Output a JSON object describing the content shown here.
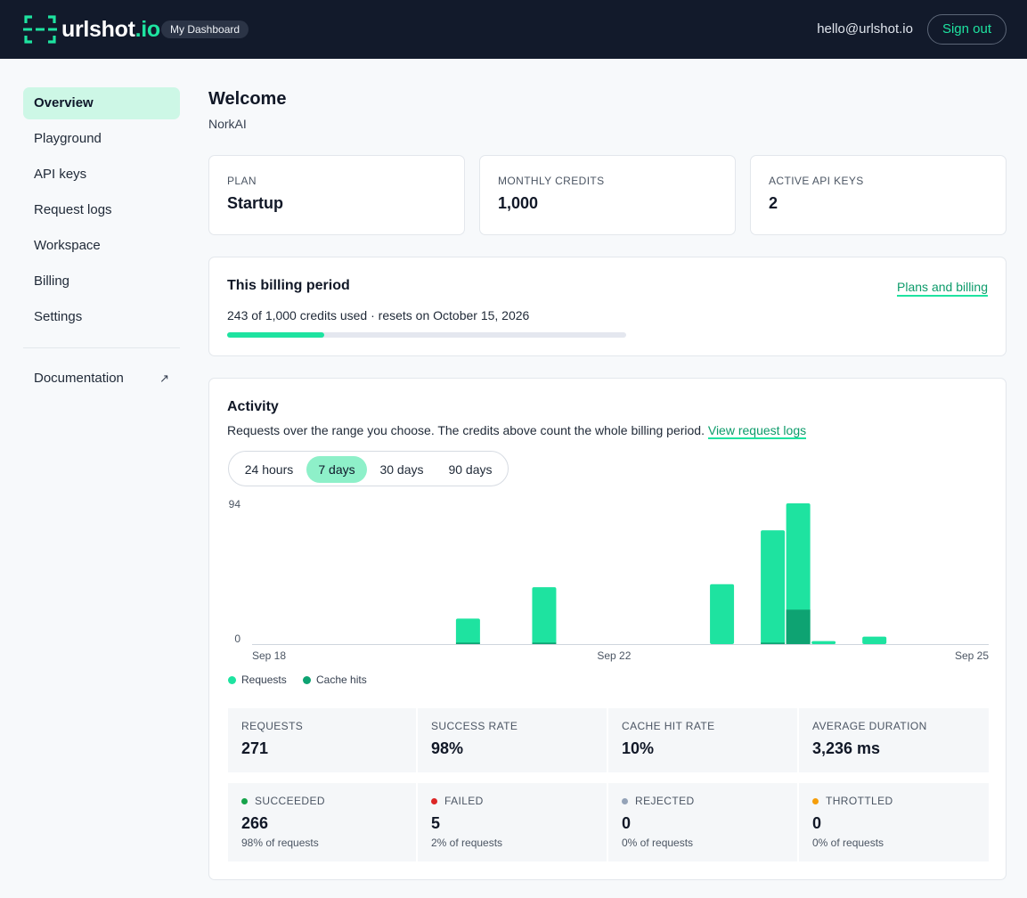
{
  "header": {
    "brand_name": "urlshot",
    "brand_tld": ".io",
    "badge": "My Dashboard",
    "user_email": "hello@urlshot.io",
    "sign_out": "Sign out",
    "brand_color": "#1ee3a0"
  },
  "sidebar": {
    "items": [
      {
        "label": "Overview",
        "active": true
      },
      {
        "label": "Playground"
      },
      {
        "label": "API keys"
      },
      {
        "label": "Request logs"
      },
      {
        "label": "Workspace"
      },
      {
        "label": "Billing"
      },
      {
        "label": "Settings"
      }
    ],
    "documentation": "Documentation",
    "documentation_icon": "external-arrow-icon"
  },
  "main": {
    "title": "Welcome",
    "org": "NorkAI",
    "stats": [
      {
        "label": "PLAN",
        "value": "Startup"
      },
      {
        "label": "MONTHLY CREDITS",
        "value": "1,000"
      },
      {
        "label": "ACTIVE API KEYS",
        "value": "2"
      }
    ],
    "billing": {
      "title": "This billing period",
      "link": "Plans and billing",
      "usage_text": "243 of 1,000 credits used · resets on October 15, 2026",
      "used": 243,
      "total": 1000
    },
    "activity": {
      "title": "Activity",
      "description": "Requests over the range you choose. The credits above count the whole billing period.",
      "link": "View request logs",
      "ranges": [
        "24 hours",
        "7 days",
        "30 days",
        "90 days"
      ],
      "selected_range": "7 days"
    },
    "metrics": [
      {
        "label": "REQUESTS",
        "value": "271"
      },
      {
        "label": "SUCCESS RATE",
        "value": "98%"
      },
      {
        "label": "CACHE HIT RATE",
        "value": "10%"
      },
      {
        "label": "AVERAGE DURATION",
        "value": "3,236 ms"
      }
    ],
    "statuses": [
      {
        "label": "SUCCEEDED",
        "value": "266",
        "sub": "98% of requests",
        "color": "#16a34a"
      },
      {
        "label": "FAILED",
        "value": "5",
        "sub": "2% of requests",
        "color": "#dc2626"
      },
      {
        "label": "REJECTED",
        "value": "0",
        "sub": "0% of requests",
        "color": "#94a3b8"
      },
      {
        "label": "THROTTLED",
        "value": "0",
        "sub": "0% of requests",
        "color": "#f59e0b"
      }
    ]
  },
  "chart_data": {
    "type": "bar",
    "y_ticks": [
      "94",
      "0"
    ],
    "ylim": [
      0,
      94
    ],
    "x_tick_labels": [
      "Sep 18",
      "Sep 22",
      "Sep 25"
    ],
    "bar_count": 29,
    "series": [
      {
        "name": "Requests",
        "color": "#1ee3a0",
        "values": [
          0,
          0,
          0,
          0,
          0,
          0,
          0,
          0,
          17,
          0,
          0,
          38,
          0,
          0,
          0,
          0,
          0,
          0,
          40,
          0,
          76,
          94,
          2,
          0,
          5,
          0,
          0,
          0,
          0
        ]
      },
      {
        "name": "Cache hits",
        "color": "#0ea372",
        "values": [
          0,
          0,
          0,
          0,
          0,
          0,
          0,
          0,
          1,
          0,
          0,
          1,
          0,
          0,
          0,
          0,
          0,
          0,
          0,
          0,
          1,
          23,
          0,
          0,
          0,
          0,
          0,
          0,
          0
        ]
      }
    ]
  }
}
